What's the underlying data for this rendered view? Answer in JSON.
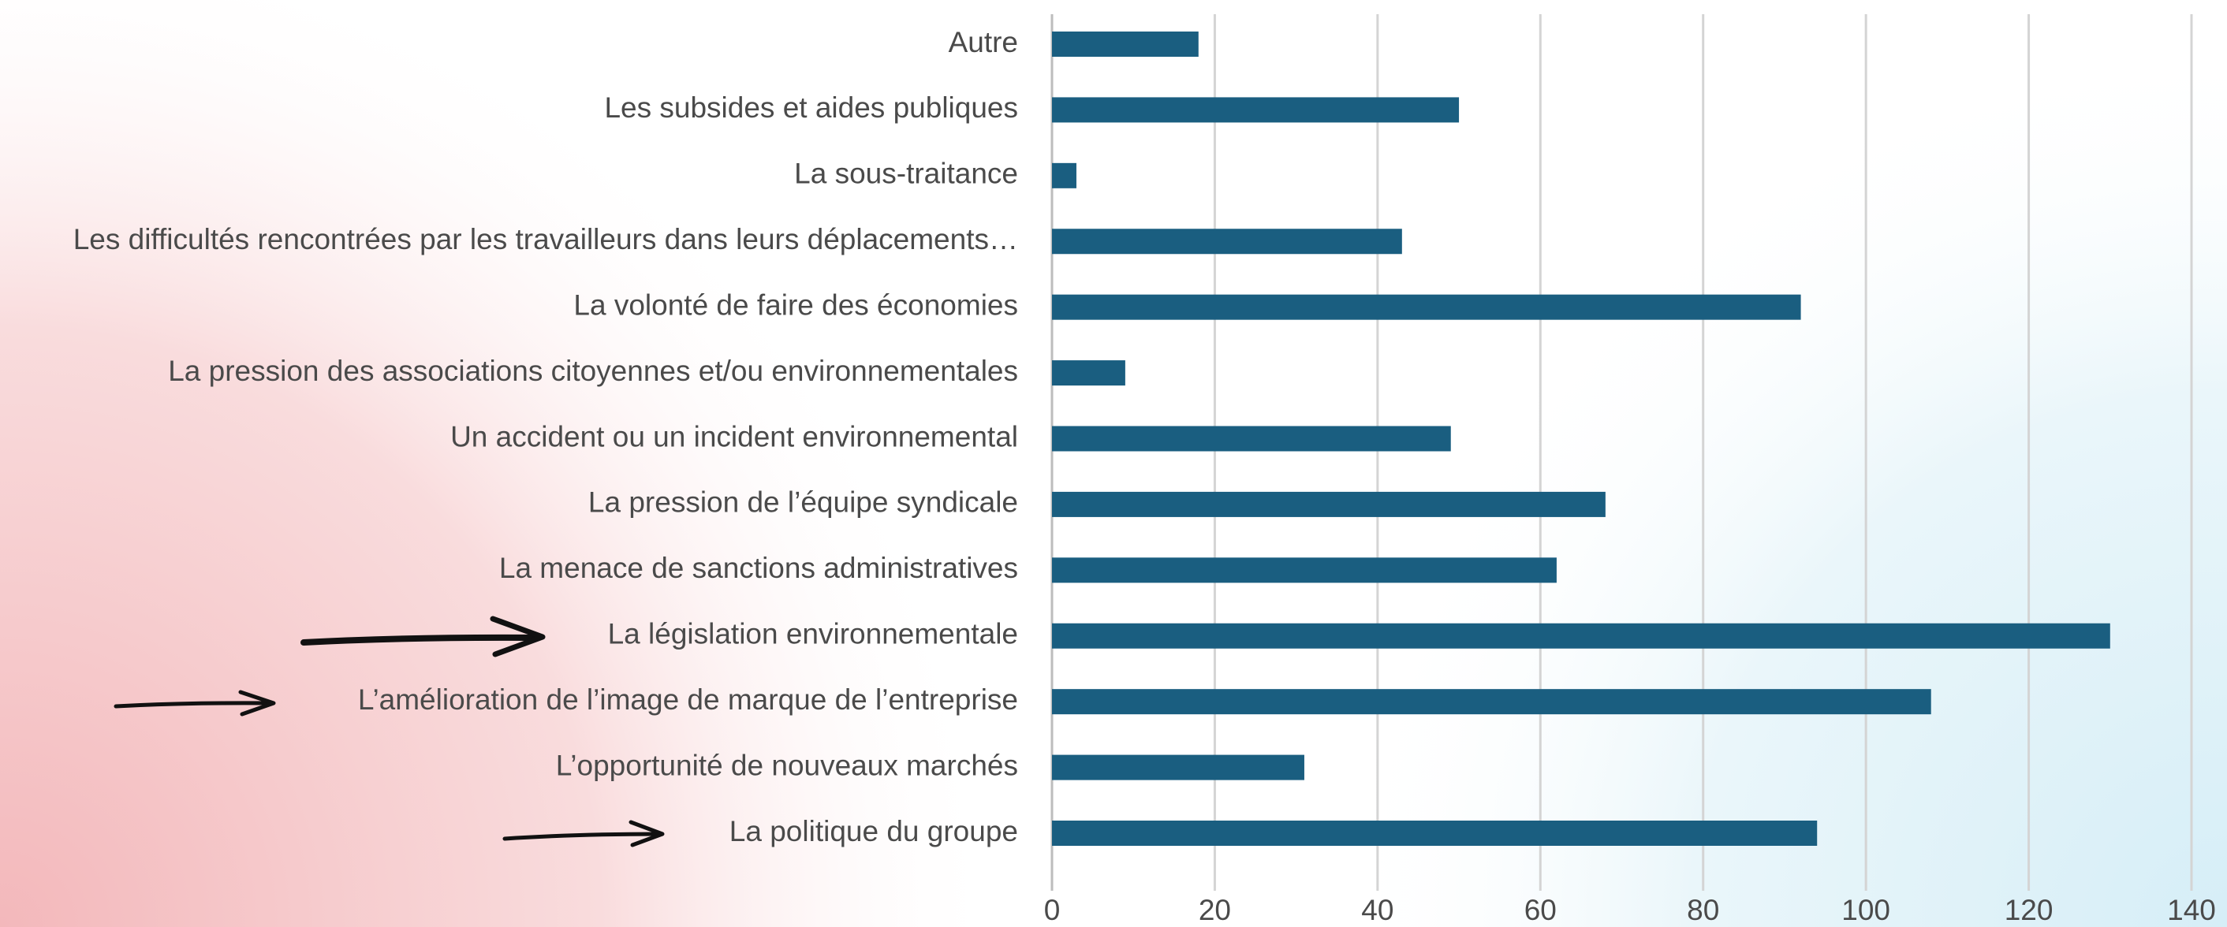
{
  "chart_data": {
    "type": "bar",
    "orientation": "horizontal",
    "categories": [
      "Autre",
      "Les subsides et aides publiques",
      "La sous-traitance",
      "Les difficultés rencontrées par les travailleurs dans leurs déplacements…",
      "La volonté de faire des économies",
      "La pression des associations citoyennes et/ou environnementales",
      "Un accident ou un incident environnemental",
      "La pression de l’équipe syndicale",
      "La menace de sanctions administratives",
      "La législation environnementale",
      "L’amélioration de l’image de marque de l’entreprise",
      "L’opportunité de nouveaux marchés",
      "La politique du groupe"
    ],
    "values": [
      18,
      50,
      3,
      43,
      92,
      9,
      49,
      68,
      62,
      130,
      108,
      31,
      94
    ],
    "color": "#1a5e80",
    "xlim": [
      0,
      140
    ],
    "xticks": [
      0,
      20,
      40,
      60,
      80,
      100,
      120,
      140
    ],
    "grid": true
  }
}
